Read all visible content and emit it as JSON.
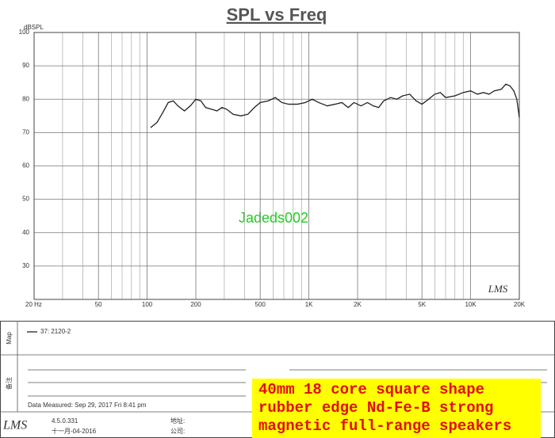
{
  "chart_data": {
    "type": "line",
    "title": "SPL vs Freq",
    "y_label": "dBSPL",
    "x_scale": "log",
    "grid": true,
    "xlim": [
      20,
      20000
    ],
    "ylim": [
      20,
      100
    ],
    "xticks": [
      {
        "value": 20,
        "label": "20 Hz"
      },
      50,
      100,
      200,
      500,
      {
        "value": 1000,
        "label": "1K"
      },
      {
        "value": 2000,
        "label": "2K"
      },
      {
        "value": 5000,
        "label": "5K"
      },
      {
        "value": 10000,
        "label": "10K"
      },
      {
        "value": 20000,
        "label": "20K"
      }
    ],
    "x_minor_gridlines": [
      30,
      40,
      60,
      70,
      80,
      90,
      300,
      400,
      600,
      700,
      800,
      900,
      3000,
      4000,
      6000,
      7000,
      8000,
      9000
    ],
    "yticks": [
      30,
      40,
      50,
      60,
      70,
      80,
      90,
      100
    ],
    "x": [
      105,
      115,
      125,
      135,
      145,
      155,
      170,
      185,
      200,
      215,
      230,
      250,
      270,
      290,
      310,
      340,
      380,
      420,
      460,
      500,
      560,
      620,
      680,
      750,
      850,
      950,
      1050,
      1150,
      1300,
      1450,
      1600,
      1750,
      1900,
      2100,
      2300,
      2500,
      2700,
      2900,
      3200,
      3500,
      3800,
      4200,
      4600,
      5000,
      5500,
      6000,
      6500,
      7000,
      8000,
      9000,
      10000,
      11000,
      12000,
      13000,
      14000,
      15500,
      16500,
      17500,
      18500,
      19300,
      20000
    ],
    "series": [
      {
        "name": "37: 2120-2",
        "color": "#222222",
        "values": [
          71.5,
          73,
          76,
          79,
          79.5,
          78,
          76.5,
          78,
          80,
          79.5,
          77.5,
          77,
          76.5,
          77.5,
          77,
          75.5,
          75,
          75.5,
          77.5,
          79,
          79.5,
          80.5,
          79,
          78.5,
          78.5,
          79,
          80,
          79,
          78,
          78.5,
          79,
          77.5,
          79,
          78,
          79,
          78,
          77.5,
          79.5,
          80.5,
          80,
          81,
          81.5,
          79.5,
          78.5,
          80,
          81.5,
          82,
          80.5,
          81,
          82,
          82.5,
          81.5,
          82,
          81.5,
          82.5,
          83,
          84.5,
          84,
          82.5,
          80,
          74.5
        ]
      }
    ]
  },
  "watermark": "Jadeds002",
  "plot_logo": "LMS",
  "panel": {
    "map_label": "Map",
    "notes_label": "备注",
    "measured": "Data Measured: Sep 29, 2017  Fri  8:41 pm",
    "footer_logo": "LMS",
    "version": "4.5.0.331",
    "version_date": "十一月-04-2016",
    "address_label": "地址:",
    "company_label": "公司:"
  },
  "banner": [
    "40mm 18 core square shape",
    "rubber edge Nd-Fe-B strong",
    "magnetic full-range speakers"
  ]
}
